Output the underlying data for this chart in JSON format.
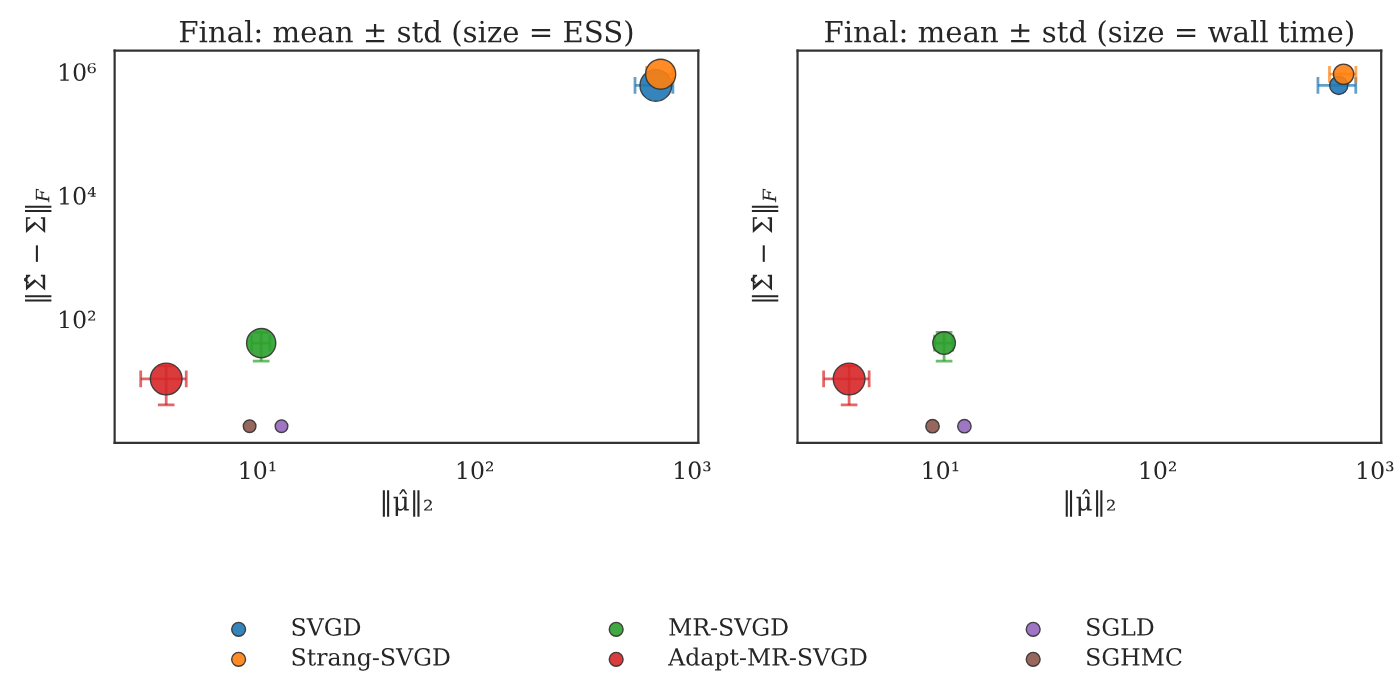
{
  "chart_data": [
    {
      "type": "bubble",
      "title": "Final: mean ± std (size = ESS)",
      "xlabel": "‖μ̂‖₂",
      "ylabel": "‖Σ̂ − Σ‖$_{F}$",
      "log": "xy",
      "xlim": [
        2.2,
        1070
      ],
      "ylim": [
        1,
        2200000
      ],
      "xticks": [
        {
          "value": 10,
          "label": "10¹"
        },
        {
          "value": 100,
          "label": "10²"
        },
        {
          "value": 1000,
          "label": "10³"
        }
      ],
      "yticks": [
        {
          "value": 100,
          "label": "10²"
        },
        {
          "value": 10000,
          "label": "10⁴"
        },
        {
          "value": 1000000,
          "label": "10⁶"
        }
      ],
      "legend": "bottom",
      "marker": "circle",
      "series": [
        {
          "name": "SVGD",
          "color": "#1f77b4",
          "x": [
            682
          ],
          "values": [
            600000
          ],
          "sizes": [
            1
          ],
          "xerrors": [
            135
          ],
          "errors": [
            null
          ]
        },
        {
          "name": "Strang-SVGD",
          "color": "#ff7f0e",
          "x": [
            718
          ],
          "values": [
            910000
          ],
          "sizes": [
            0.9
          ],
          "xerrors": [
            100
          ],
          "errors": [
            null
          ]
        },
        {
          "name": "MR-SVGD",
          "color": "#2ca02c",
          "x": [
            10.4
          ],
          "values": [
            41
          ],
          "sizes": [
            0.85
          ],
          "xerrors": [
            1
          ],
          "errors": [
            20
          ]
        },
        {
          "name": "Adapt-MR-SVGD",
          "color": "#d62728",
          "x": [
            3.8
          ],
          "values": [
            10.8
          ],
          "sizes": [
            1
          ],
          "xerrors": [
            0.9
          ],
          "errors": [
            6.7
          ]
        },
        {
          "name": "SGLD",
          "color": "#9467bd",
          "x": [
            12.9
          ],
          "values": [
            1.86
          ],
          "sizes": [
            0.16
          ],
          "xerrors": [
            null
          ],
          "errors": [
            null
          ]
        },
        {
          "name": "SGHMC",
          "color": "#8c564b",
          "x": [
            9.2
          ],
          "values": [
            1.86
          ],
          "sizes": [
            0.16
          ],
          "xerrors": [
            null
          ],
          "errors": [
            null
          ]
        }
      ]
    },
    {
      "type": "bubble",
      "title": "Final: mean ± std (size = wall time)",
      "xlabel": "‖μ̂‖₂",
      "ylabel": "‖Σ̂ − Σ‖$_{F}$",
      "log": "xy",
      "xlim": [
        2.2,
        1070
      ],
      "ylim": [
        1,
        2200000
      ],
      "xticks": [
        {
          "value": 10,
          "label": "10¹"
        },
        {
          "value": 100,
          "label": "10²"
        },
        {
          "value": 1000,
          "label": "10³"
        }
      ],
      "yticks": [
        {
          "value": 100,
          "label": null
        },
        {
          "value": 10000,
          "label": null
        },
        {
          "value": 1000000,
          "label": null
        }
      ],
      "tick_labels": "x",
      "marker": "circle",
      "series": [
        {
          "color": "#1f77b4",
          "x": [
            682
          ],
          "values": [
            600000
          ],
          "sizes": [
            0.33
          ],
          "xerrors": [
            135
          ],
          "errors": [
            null
          ]
        },
        {
          "color": "#ff7f0e",
          "x": [
            718
          ],
          "values": [
            910000
          ],
          "sizes": [
            0.41
          ],
          "xerrors": [
            100
          ],
          "errors": [
            null
          ]
        },
        {
          "color": "#2ca02c",
          "x": [
            10.4
          ],
          "values": [
            41
          ],
          "sizes": [
            0.51
          ],
          "xerrors": [
            1
          ],
          "errors": [
            20
          ]
        },
        {
          "color": "#d62728",
          "x": [
            3.8
          ],
          "values": [
            10.8
          ],
          "sizes": [
            1
          ],
          "xerrors": [
            0.9
          ],
          "errors": [
            6.7
          ]
        },
        {
          "color": "#9467bd",
          "x": [
            12.9
          ],
          "values": [
            1.86
          ],
          "sizes": [
            0.18
          ],
          "xerrors": [
            null
          ],
          "errors": [
            null
          ]
        },
        {
          "color": "#8c564b",
          "x": [
            9.2
          ],
          "values": [
            1.86
          ],
          "sizes": [
            0.18
          ],
          "xerrors": [
            null
          ],
          "errors": [
            null
          ]
        }
      ]
    }
  ]
}
